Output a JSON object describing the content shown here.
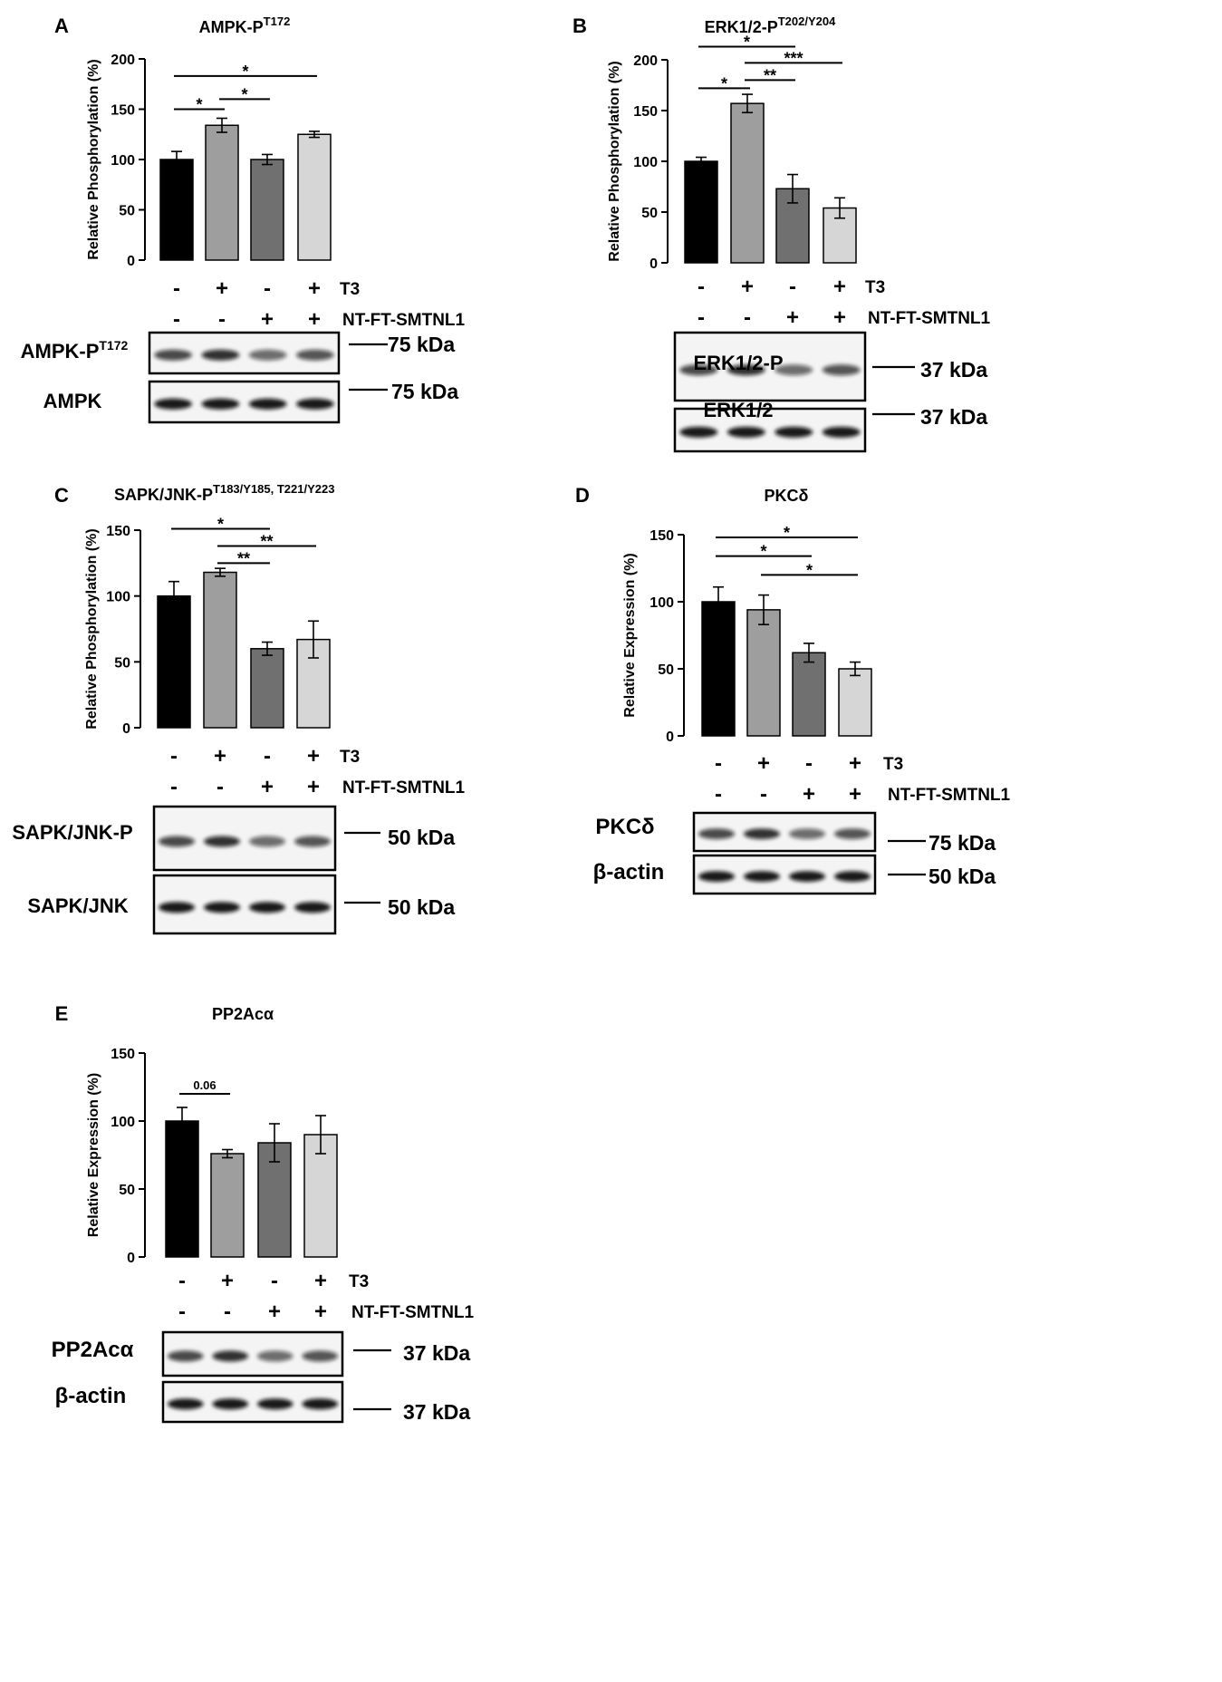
{
  "chart_data": [
    {
      "panel": "A",
      "type": "bar",
      "title": "AMPK-P",
      "title_sup": "T172",
      "ylabel": "Relative Phosphorylation (%)",
      "ylim": [
        0,
        200
      ],
      "yticks": [
        0,
        50,
        100,
        150,
        200
      ],
      "values": [
        100,
        134,
        100,
        125
      ],
      "errors": [
        8,
        7,
        5,
        3
      ],
      "bar_colors": [
        "#000000",
        "#9e9e9e",
        "#707070",
        "#d6d6d6"
      ],
      "sig": [
        {
          "from": 0,
          "to": 1,
          "y": 150,
          "label": "*"
        },
        {
          "from": 1,
          "to": 2,
          "y": 160,
          "label": "*"
        },
        {
          "from": 0,
          "to": 3,
          "y": 183,
          "label": "*"
        }
      ],
      "t3": [
        "-",
        "+",
        "-",
        "+"
      ],
      "smtnl1": [
        "-",
        "-",
        "+",
        "+"
      ],
      "t3_label": "T3",
      "smtnl1_label": "NT-FT-SMTNL1",
      "blots": [
        {
          "label": "AMPK-P",
          "label_sup": "T172",
          "marker": "75 kDa"
        },
        {
          "label": "AMPK",
          "label_sup": "",
          "marker": "75 kDa"
        }
      ]
    },
    {
      "panel": "B",
      "type": "bar",
      "title": "ERK1/2-P",
      "title_sup": "T202/Y204",
      "ylabel": "Relative Phosphorylation (%)",
      "ylim": [
        0,
        200
      ],
      "yticks": [
        0,
        50,
        100,
        150,
        200
      ],
      "values": [
        100,
        157,
        73,
        54
      ],
      "errors": [
        4,
        9,
        14,
        10
      ],
      "bar_colors": [
        "#000000",
        "#9e9e9e",
        "#707070",
        "#d6d6d6"
      ],
      "sig": [
        {
          "from": 0,
          "to": 1,
          "y": 172,
          "label": "*"
        },
        {
          "from": 1,
          "to": 2,
          "y": 180,
          "label": "**"
        },
        {
          "from": 1,
          "to": 3,
          "y": 197,
          "label": "***"
        },
        {
          "from": 0,
          "to": 2,
          "y": 213,
          "label": "*"
        }
      ],
      "t3": [
        "-",
        "+",
        "-",
        "+"
      ],
      "smtnl1": [
        "-",
        "-",
        "+",
        "+"
      ],
      "t3_label": "T3",
      "smtnl1_label": "NT-FT-SMTNL1",
      "blots": [
        {
          "label": "ERK1/2-P",
          "label_sup": "",
          "marker": "37 kDa"
        },
        {
          "label": "ERK1/2",
          "label_sup": "",
          "marker": "37 kDa"
        }
      ]
    },
    {
      "panel": "C",
      "type": "bar",
      "title": "SAPK/JNK-P",
      "title_sup": "T183/Y185, T221/Y223",
      "ylabel": "Relative Phosphorylation (%)",
      "ylim": [
        0,
        150
      ],
      "yticks": [
        0,
        50,
        100,
        150
      ],
      "values": [
        100,
        118,
        60,
        67
      ],
      "errors": [
        11,
        3,
        5,
        14
      ],
      "bar_colors": [
        "#000000",
        "#9e9e9e",
        "#707070",
        "#d6d6d6"
      ],
      "sig": [
        {
          "from": 1,
          "to": 2,
          "y": 125,
          "label": "**"
        },
        {
          "from": 1,
          "to": 3,
          "y": 138,
          "label": "**"
        },
        {
          "from": 0,
          "to": 2,
          "y": 151,
          "label": "*"
        }
      ],
      "t3": [
        "-",
        "+",
        "-",
        "+"
      ],
      "smtnl1": [
        "-",
        "-",
        "+",
        "+"
      ],
      "t3_label": "T3",
      "smtnl1_label": "NT-FT-SMTNL1",
      "blots": [
        {
          "label": "SAPK/JNK-P",
          "label_sup": "",
          "marker": "50 kDa"
        },
        {
          "label": "SAPK/JNK",
          "label_sup": "",
          "marker": "50 kDa"
        }
      ]
    },
    {
      "panel": "D",
      "type": "bar",
      "title": "PKCδ",
      "title_sup": "",
      "ylabel": "Relative Expression (%)",
      "ylim": [
        0,
        150
      ],
      "yticks": [
        0,
        50,
        100,
        150
      ],
      "values": [
        100,
        94,
        62,
        50
      ],
      "errors": [
        11,
        11,
        7,
        5
      ],
      "bar_colors": [
        "#000000",
        "#9e9e9e",
        "#707070",
        "#d6d6d6"
      ],
      "sig": [
        {
          "from": 1,
          "to": 3,
          "y": 120,
          "label": "*"
        },
        {
          "from": 0,
          "to": 2,
          "y": 134,
          "label": "*"
        },
        {
          "from": 0,
          "to": 3,
          "y": 148,
          "label": "*"
        }
      ],
      "t3": [
        "-",
        "+",
        "-",
        "+"
      ],
      "smtnl1": [
        "-",
        "-",
        "+",
        "+"
      ],
      "t3_label": "T3",
      "smtnl1_label": "NT-FT-SMTNL1",
      "blots": [
        {
          "label": "PKCδ",
          "label_sup": "",
          "marker": "75 kDa"
        },
        {
          "label": "β-actin",
          "label_sup": "",
          "marker": "50 kDa"
        }
      ]
    },
    {
      "panel": "E",
      "type": "bar",
      "title": "PP2Acα",
      "title_sup": "",
      "ylabel": "Relative Expression (%)",
      "ylim": [
        0,
        150
      ],
      "yticks": [
        0,
        50,
        100,
        150
      ],
      "values": [
        100,
        76,
        84,
        90
      ],
      "errors": [
        10,
        3,
        14,
        14
      ],
      "bar_colors": [
        "#000000",
        "#9e9e9e",
        "#707070",
        "#d6d6d6"
      ],
      "sig": [
        {
          "from": 0,
          "to": 1,
          "y": 120,
          "label": "0.06"
        }
      ],
      "t3": [
        "-",
        "+",
        "-",
        "+"
      ],
      "smtnl1": [
        "-",
        "-",
        "+",
        "+"
      ],
      "t3_label": "T3",
      "smtnl1_label": "NT-FT-SMTNL1",
      "blots": [
        {
          "label": "PP2Acα",
          "label_sup": "",
          "marker": "37 kDa"
        },
        {
          "label": "β-actin",
          "label_sup": "",
          "marker": "37 kDa"
        }
      ]
    }
  ]
}
